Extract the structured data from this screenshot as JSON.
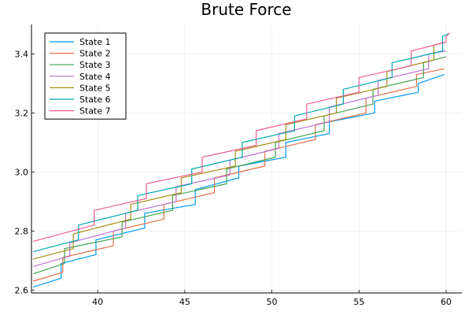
{
  "chart_data": {
    "type": "line",
    "title": "Brute Force",
    "xlabel": "",
    "ylabel": "",
    "xlim": [
      36.2,
      60.9
    ],
    "ylim": [
      2.59,
      3.5
    ],
    "xticks": [
      40,
      45,
      50,
      55,
      60
    ],
    "yticks": [
      2.6,
      2.8,
      3.0,
      3.2,
      3.4
    ],
    "xtick_labels": [
      "40",
      "45",
      "50",
      "55",
      "60"
    ],
    "ytick_labels": [
      "2.6",
      "2.8",
      "3.0",
      "3.2",
      "3.4"
    ],
    "grid": true,
    "legend_position": "top-left",
    "series": [
      {
        "name": "State 1",
        "color": "#009AFA",
        "points": [
          [
            36.3,
            2.61
          ],
          [
            37.9,
            2.64
          ],
          [
            37.9,
            2.69
          ],
          [
            39.9,
            2.72
          ],
          [
            39.9,
            2.77
          ],
          [
            42.7,
            2.81
          ],
          [
            42.7,
            2.86
          ],
          [
            45.6,
            2.89
          ],
          [
            45.6,
            2.94
          ],
          [
            48.1,
            2.98
          ],
          [
            48.1,
            3.02
          ],
          [
            50.8,
            3.05
          ],
          [
            50.8,
            3.1
          ],
          [
            53.3,
            3.13
          ],
          [
            53.3,
            3.17
          ],
          [
            55.9,
            3.2
          ],
          [
            55.9,
            3.24
          ],
          [
            58.4,
            3.27
          ],
          [
            58.4,
            3.3
          ],
          [
            59.9,
            3.33
          ]
        ]
      },
      {
        "name": "State 2",
        "color": "#E36F47",
        "points": [
          [
            36.3,
            2.63
          ],
          [
            38.0,
            2.66
          ],
          [
            38.0,
            2.71
          ],
          [
            40.9,
            2.75
          ],
          [
            40.9,
            2.8
          ],
          [
            43.8,
            2.84
          ],
          [
            43.8,
            2.89
          ],
          [
            46.7,
            2.93
          ],
          [
            46.7,
            2.98
          ],
          [
            49.6,
            3.02
          ],
          [
            49.6,
            3.07
          ],
          [
            52.5,
            3.11
          ],
          [
            52.5,
            3.16
          ],
          [
            55.4,
            3.2
          ],
          [
            55.4,
            3.25
          ],
          [
            58.3,
            3.29
          ],
          [
            58.3,
            3.33
          ],
          [
            59.9,
            3.35
          ]
        ]
      },
      {
        "name": "State 3",
        "color": "#3EA44E",
        "points": [
          [
            36.3,
            2.655
          ],
          [
            38.1,
            2.69
          ],
          [
            38.1,
            2.74
          ],
          [
            41.4,
            2.78
          ],
          [
            41.4,
            2.83
          ],
          [
            44.3,
            2.87
          ],
          [
            44.3,
            2.92
          ],
          [
            47.4,
            2.96
          ],
          [
            47.4,
            3.01
          ],
          [
            50.2,
            3.05
          ],
          [
            50.2,
            3.1
          ],
          [
            53.0,
            3.14
          ],
          [
            53.0,
            3.19
          ],
          [
            55.8,
            3.23
          ],
          [
            55.8,
            3.28
          ],
          [
            58.7,
            3.32
          ],
          [
            58.7,
            3.37
          ],
          [
            60.0,
            3.39
          ]
        ]
      },
      {
        "name": "State 4",
        "color": "#C271D2",
        "points": [
          [
            36.3,
            2.68
          ],
          [
            38.4,
            2.715
          ],
          [
            38.4,
            2.76
          ],
          [
            41.6,
            2.81
          ],
          [
            41.6,
            2.86
          ],
          [
            44.5,
            2.9
          ],
          [
            44.5,
            2.95
          ],
          [
            47.6,
            2.99
          ],
          [
            47.6,
            3.04
          ],
          [
            50.4,
            3.08
          ],
          [
            50.4,
            3.13
          ],
          [
            53.3,
            3.17
          ],
          [
            53.3,
            3.22
          ],
          [
            56.1,
            3.26
          ],
          [
            56.1,
            3.31
          ],
          [
            59.0,
            3.35
          ],
          [
            59.0,
            3.4
          ],
          [
            60.0,
            3.41
          ]
        ]
      },
      {
        "name": "State 5",
        "color": "#AC8D18",
        "points": [
          [
            36.3,
            2.705
          ],
          [
            38.6,
            2.74
          ],
          [
            38.6,
            2.79
          ],
          [
            41.9,
            2.84
          ],
          [
            41.9,
            2.89
          ],
          [
            44.8,
            2.93
          ],
          [
            44.8,
            2.98
          ],
          [
            47.9,
            3.02
          ],
          [
            47.9,
            3.07
          ],
          [
            50.8,
            3.11
          ],
          [
            50.8,
            3.16
          ],
          [
            53.7,
            3.2
          ],
          [
            53.7,
            3.25
          ],
          [
            56.6,
            3.29
          ],
          [
            56.6,
            3.34
          ],
          [
            59.3,
            3.38
          ],
          [
            59.3,
            3.43
          ],
          [
            60.0,
            3.44
          ]
        ]
      },
      {
        "name": "State 6",
        "color": "#00A9AD",
        "points": [
          [
            36.3,
            2.73
          ],
          [
            38.9,
            2.77
          ],
          [
            38.9,
            2.82
          ],
          [
            42.3,
            2.87
          ],
          [
            42.3,
            2.92
          ],
          [
            45.4,
            2.96
          ],
          [
            45.4,
            3.01
          ],
          [
            48.3,
            3.05
          ],
          [
            48.3,
            3.1
          ],
          [
            51.3,
            3.14
          ],
          [
            51.3,
            3.19
          ],
          [
            54.1,
            3.23
          ],
          [
            54.1,
            3.28
          ],
          [
            56.9,
            3.32
          ],
          [
            56.9,
            3.37
          ],
          [
            59.8,
            3.41
          ],
          [
            59.8,
            3.46
          ],
          [
            60.2,
            3.47
          ]
        ]
      },
      {
        "name": "State 7",
        "color": "#ED5D92",
        "points": [
          [
            36.3,
            2.765
          ],
          [
            39.8,
            2.82
          ],
          [
            39.8,
            2.87
          ],
          [
            42.8,
            2.91
          ],
          [
            42.8,
            2.96
          ],
          [
            46.0,
            3.0
          ],
          [
            46.0,
            3.05
          ],
          [
            49.1,
            3.09
          ],
          [
            49.1,
            3.14
          ],
          [
            52.0,
            3.18
          ],
          [
            52.0,
            3.23
          ],
          [
            55.0,
            3.27
          ],
          [
            55.0,
            3.32
          ],
          [
            58.0,
            3.36
          ],
          [
            58.0,
            3.41
          ],
          [
            60.0,
            3.44
          ],
          [
            60.0,
            3.46
          ],
          [
            60.2,
            3.47
          ]
        ]
      }
    ]
  }
}
